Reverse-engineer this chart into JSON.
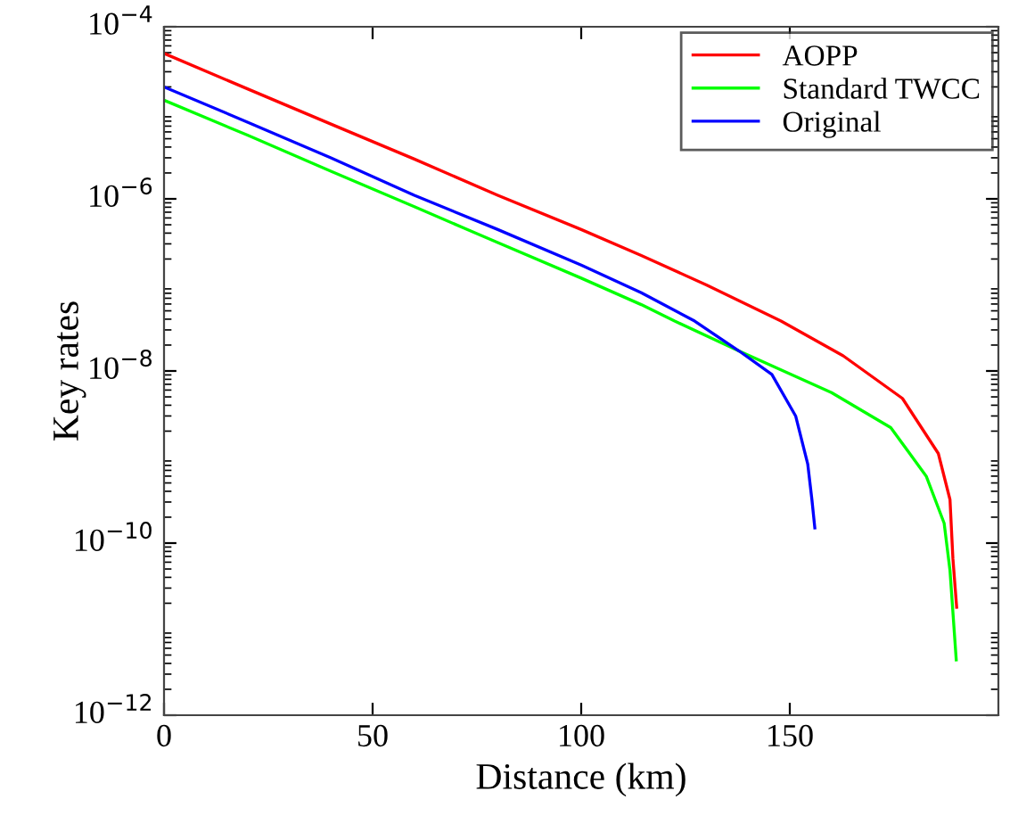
{
  "chart_data": {
    "type": "line",
    "xlabel": "Distance (km)",
    "ylabel": "Key rates",
    "log": "y",
    "xlim": [
      0,
      200
    ],
    "xticks": [
      0,
      50,
      100,
      150
    ],
    "ylim": [
      1e-12,
      0.0001
    ],
    "yticks": [
      {
        "value": 1e-12,
        "label": "10$^{−12}$"
      },
      {
        "value": 1e-10,
        "label": "10$^{−10}$"
      },
      {
        "value": 1e-08,
        "label": "10$^{−8}$"
      },
      {
        "value": 1e-06,
        "label": "10$^{−6}$"
      },
      {
        "value": 0.0001,
        "label": "10$^{−4}$"
      }
    ],
    "legend": "top right",
    "grid": false,
    "marker": "none",
    "line_style": "solid",
    "series": [
      {
        "name": "AOPP",
        "color": "#ff0000",
        "x": [
          0,
          20,
          40,
          60,
          80,
          100,
          114.4,
          130,
          147.9,
          162.8,
          177,
          185.6,
          188.4,
          189.1,
          190
        ],
        "values": [
          4.9e-05,
          1.9e-05,
          7.4e-06,
          2.9e-06,
          1.1e-06,
          4.4e-07,
          2.2e-07,
          1e-07,
          3.8e-08,
          1.5e-08,
          4.8e-09,
          1.1e-09,
          3.2e-10,
          6.6e-11,
          1.8e-11
        ]
      },
      {
        "name": "Standard TWCC",
        "color": "#00ff00",
        "x": [
          0,
          20,
          40,
          60,
          80,
          100,
          114.4,
          122.4,
          137.9,
          160,
          174.2,
          182.7,
          187,
          188.4,
          189.9
        ],
        "values": [
          1.4e-05,
          5.5e-06,
          2.1e-06,
          8.1e-07,
          3.1e-07,
          1.2e-07,
          5.9e-08,
          3.8e-08,
          1.7e-08,
          5.6e-09,
          2.2e-09,
          6e-10,
          1.7e-10,
          4.8e-11,
          4.4e-12
        ]
      },
      {
        "name": "Original",
        "color": "#0000ff",
        "x": [
          0,
          20,
          40,
          60,
          80,
          100,
          114.4,
          127.2,
          137.9,
          145.7,
          151.4,
          154.3,
          155.3,
          156
        ],
        "values": [
          2e-05,
          7.8e-06,
          3e-06,
          1.1e-06,
          4.4e-07,
          1.7e-07,
          8.1e-08,
          3.8e-08,
          1.7e-08,
          9.1e-09,
          3e-09,
          8.3e-10,
          3.2e-10,
          1.5e-10
        ]
      }
    ]
  }
}
